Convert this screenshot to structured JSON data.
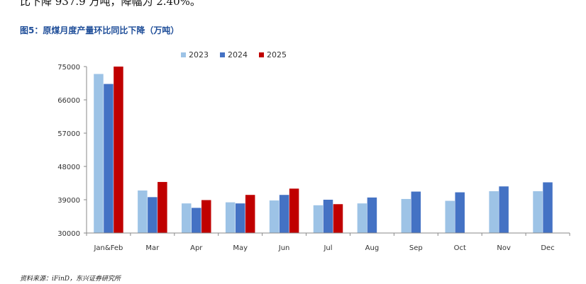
{
  "header": {
    "top_text": "比下降 937.9 万吨，降幅为 2.40%。",
    "figure_title": "图5：原煤月度产量环比同比下降（万吨）"
  },
  "footer": {
    "source": "资料来源：iFinD，东兴证券研究所"
  },
  "chart_data": {
    "type": "bar",
    "title": "",
    "xlabel": "",
    "ylabel": "",
    "categories": [
      "Jan&Feb",
      "Mar",
      "Apr",
      "May",
      "Jun",
      "Jul",
      "Aug",
      "Sep",
      "Oct",
      "Nov",
      "Dec"
    ],
    "series": [
      {
        "name": "2023",
        "color": "#9dc3e6",
        "values": [
          73000,
          41500,
          38000,
          38300,
          38800,
          37500,
          38000,
          39200,
          38700,
          41300,
          41300
        ]
      },
      {
        "name": "2024",
        "color": "#4472c4",
        "values": [
          70300,
          39700,
          36800,
          38000,
          40300,
          39000,
          39600,
          41200,
          41000,
          42600,
          43700
        ]
      },
      {
        "name": "2025",
        "color": "#c00000",
        "values": [
          75000,
          43800,
          38900,
          40300,
          42000,
          37800,
          null,
          null,
          null,
          null,
          null
        ]
      }
    ],
    "yticks": [
      30000,
      39000,
      48000,
      57000,
      66000,
      75000
    ],
    "ylim": [
      30000,
      75000
    ],
    "legend_position": "top",
    "grid": false
  }
}
